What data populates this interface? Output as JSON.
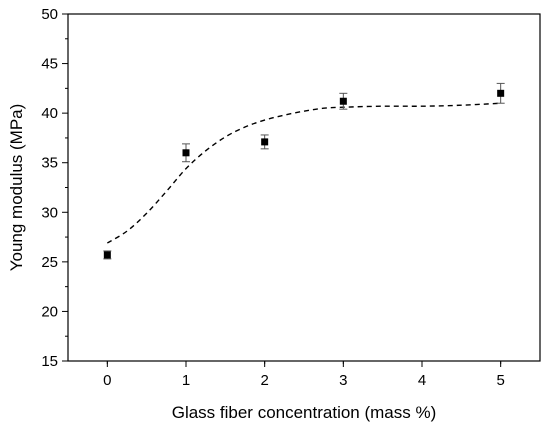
{
  "chart_data": {
    "type": "scatter",
    "title": "",
    "xlabel": "Glass fiber concentration (mass %)",
    "ylabel": "Young modulus (MPa)",
    "xlim": [
      -0.5,
      5.5
    ],
    "ylim": [
      15,
      50
    ],
    "xticks": [
      0,
      1,
      2,
      3,
      4,
      5
    ],
    "yticks": [
      15,
      20,
      25,
      30,
      35,
      40,
      45,
      50
    ],
    "x_tick_labels": [
      "0",
      "1",
      "2",
      "3",
      "4",
      "5"
    ],
    "y_tick_labels": [
      "15",
      "20",
      "25",
      "30",
      "35",
      "40",
      "45",
      "50"
    ],
    "grid": false,
    "series": [
      {
        "marker": "square",
        "color": "#000000",
        "x": [
          0,
          1,
          2,
          3,
          5
        ],
        "y": [
          25.7,
          36.0,
          37.1,
          41.2,
          42.0
        ],
        "error": [
          0.4,
          0.9,
          0.7,
          0.8,
          1.0
        ]
      }
    ],
    "fit_curve": {
      "style": "dashed",
      "color": "#000000",
      "x": [
        0,
        0.25,
        0.5,
        0.75,
        1,
        1.25,
        1.5,
        1.75,
        2,
        2.25,
        2.5,
        2.75,
        3,
        3.5,
        4,
        4.5,
        5
      ],
      "y": [
        26.9,
        28.1,
        29.9,
        32.1,
        34.4,
        36.2,
        37.6,
        38.6,
        39.3,
        39.8,
        40.2,
        40.5,
        40.6,
        40.7,
        40.7,
        40.8,
        41.0
      ]
    }
  }
}
